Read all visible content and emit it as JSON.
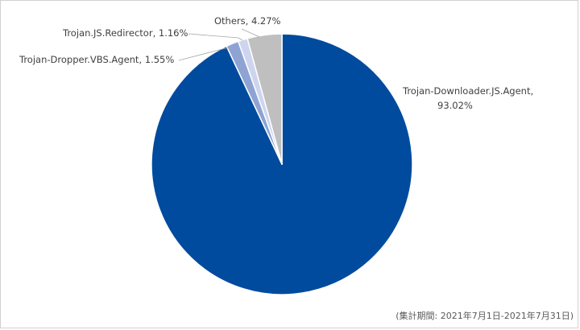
{
  "chart_data": {
    "type": "pie",
    "start_angle_deg": 0,
    "direction": "clockwise",
    "slices": [
      {
        "label": "Trojan-Downloader.JS.Agent",
        "value": 93.02,
        "display_name": "Trojan-Downloader.JS.Agent,",
        "display_value": "93.02%",
        "color": "#004b9e"
      },
      {
        "label": "Trojan-Dropper.VBS.Agent",
        "value": 1.55,
        "display": "Trojan-Dropper.VBS.Agent, 1.55%",
        "color": "#8ea3d4"
      },
      {
        "label": "Trojan.JS.Redirector",
        "value": 1.16,
        "display": "Trojan.JS.Redirector, 1.16%",
        "color": "#cdd5ee"
      },
      {
        "label": "Others",
        "value": 4.27,
        "display": "Others, 4.27%",
        "color": "#bfbfbf"
      }
    ],
    "legend": "none"
  },
  "footnote": "(集計期間: 2021年7月1日-2021年7月31日)"
}
